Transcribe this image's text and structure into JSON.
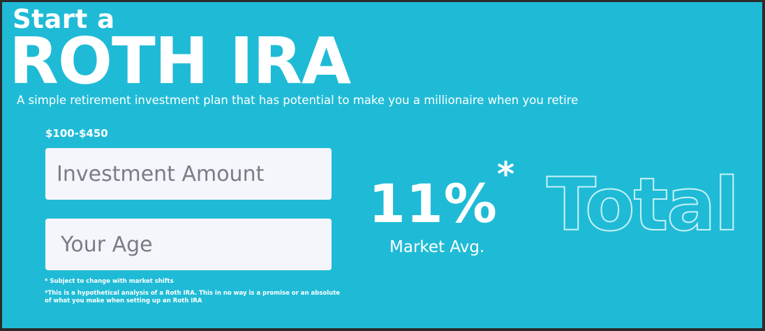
{
  "header": {
    "title_small": "Start a",
    "title_big": "ROTH IRA",
    "subtitle": "A simple retirement investment plan that has potential to make you a millionaire when you retire"
  },
  "form": {
    "range_label": "$100-$450",
    "investment": {
      "placeholder": "Investment Amount",
      "value": ""
    },
    "age": {
      "placeholder": "Your Age",
      "value": ""
    }
  },
  "notes": {
    "subject_to_change": "* Subject to change with market shifts",
    "disclaimer": "*This is a hypothetical analysis of a Roth IRA. This in no way is a promise or an absolute of what you make when setting up an Roth IRA"
  },
  "rate": {
    "value": "11%",
    "asterisk": "*",
    "caption": "Market Avg."
  },
  "result": {
    "label": "Total"
  },
  "colors": {
    "background": "#1fbbd6",
    "frame": "#2b2b2b",
    "text": "#ffffff",
    "field_background": "#f4f6fc",
    "outline_text": "#c8f1f8"
  }
}
